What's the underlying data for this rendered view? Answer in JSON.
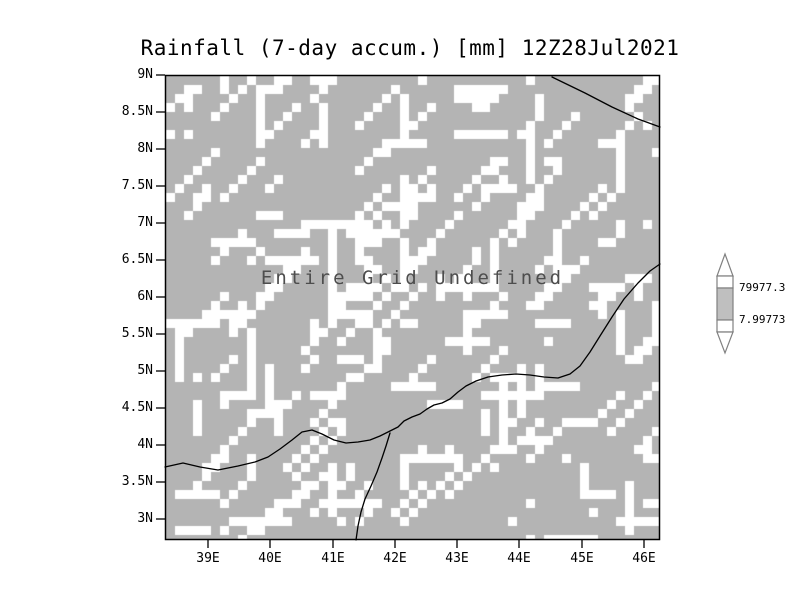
{
  "title": "Rainfall (7-day accum.) [mm] 12Z28Jul2021",
  "annotation": "Entire Grid Undefined",
  "y_axis": {
    "labels": [
      "9N",
      "8.5N",
      "8N",
      "7.5N",
      "7N",
      "6.5N",
      "6N",
      "5.5N",
      "5N",
      "4.5N",
      "4N",
      "3.5N",
      "3N"
    ]
  },
  "x_axis": {
    "labels": [
      "39E",
      "40E",
      "41E",
      "42E",
      "43E",
      "44E",
      "45E",
      "46E"
    ]
  },
  "colorbar": {
    "top_label": "79977.3",
    "bottom_label": "7.99773"
  },
  "colors": {
    "grid_fill": "#b4b4b4",
    "undefined_cell": "#ffffff",
    "coastline": "#000000",
    "annotation_text": "#4d4d4d"
  },
  "chart_data": {
    "type": "heatmap",
    "title": "Rainfall (7-day accum.) [mm] 12Z28Jul2021",
    "variable": "Rainfall (7-day accum.)",
    "units": "mm",
    "valid_time": "12Z28Jul2021",
    "x_tick_labels": [
      "39E",
      "40E",
      "41E",
      "42E",
      "43E",
      "44E",
      "45E",
      "46E"
    ],
    "y_tick_labels": [
      "9N",
      "8.5N",
      "8N",
      "7.5N",
      "7N",
      "6.5N",
      "6N",
      "5.5N",
      "5N",
      "4.5N",
      "4N",
      "3.5N",
      "3N"
    ],
    "x_range_deg_east": [
      38.3,
      46.3
    ],
    "y_range_deg_north": [
      2.7,
      9.0
    ],
    "values": null,
    "status": "Entire Grid Undefined",
    "colorbar_ticks": [
      79977.3,
      7.99773
    ],
    "legend_position": "right",
    "grid": false
  }
}
